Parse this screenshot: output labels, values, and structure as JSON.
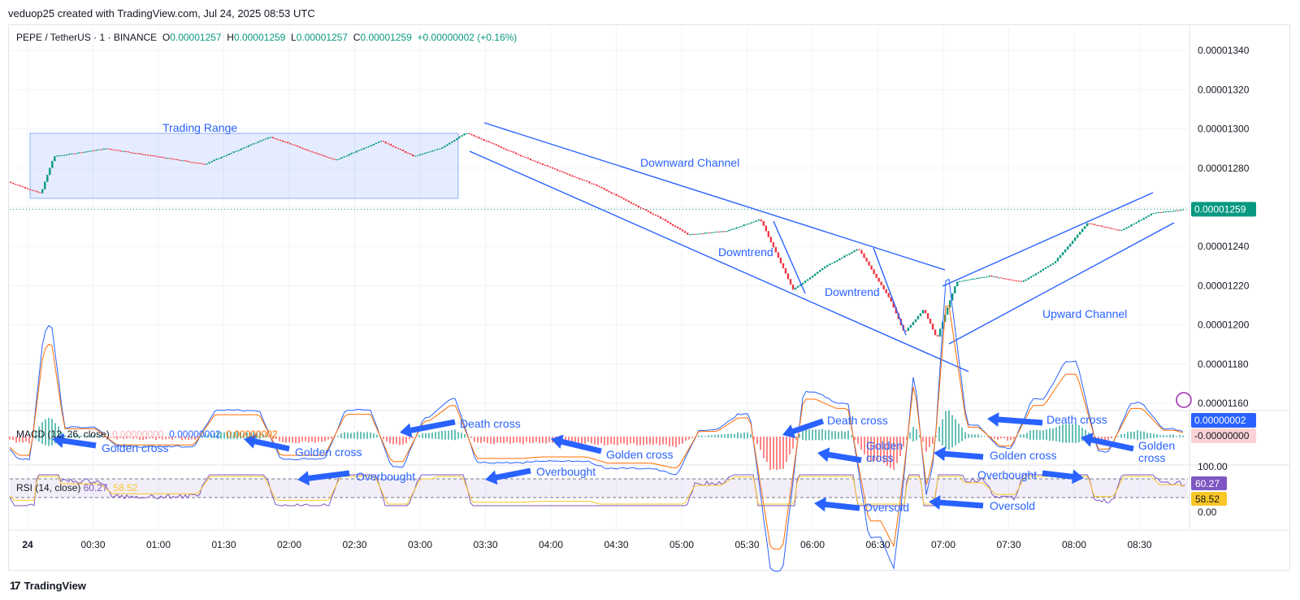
{
  "header": {
    "text": "veduop25 created with TradingView.com, Jul 24, 2025 08:53 UTC"
  },
  "legend": {
    "symbol": "PEPE / TetherUS · 1 · BINANCE",
    "o_label": "O",
    "o": "0.00001257",
    "h_label": "H",
    "h": "0.00001259",
    "l_label": "L",
    "l": "0.00001257",
    "c_label": "C",
    "c": "0.00001259",
    "change": "+0.00000002 (+0.16%)"
  },
  "macd_legend": {
    "name": "MACD (12, 26, close)",
    "hist": "0.00000000",
    "macd": "0.00000002",
    "signal": "0.00000002"
  },
  "rsi_legend": {
    "name": "RSI (14, close)",
    "rsi": "60.27",
    "ma": "58.52"
  },
  "price_axis": {
    "ticks": [
      "0.00001340",
      "0.00001320",
      "0.00001300",
      "0.00001280",
      "0.00001260",
      "0.00001240",
      "0.00001220",
      "0.00001200",
      "0.00001180",
      "0.00001160"
    ],
    "last_price": "0.00001259",
    "last_color": "#089981"
  },
  "macd_axis": {
    "macd_badge": "0.00000002",
    "hist_badge": "-0.00000000",
    "macd_color": "#2962ff",
    "hist_color": "#f7525f"
  },
  "rsi_axis": {
    "top": "100.00",
    "bottom": "0.00",
    "rsi_badge": "60.27",
    "ma_badge": "58.52",
    "rsi_color": "#7e57c2",
    "ma_color": "#f9c626"
  },
  "time_axis": {
    "labels": [
      "24",
      "00:30",
      "01:00",
      "01:30",
      "02:00",
      "02:30",
      "03:00",
      "03:30",
      "04:00",
      "04:30",
      "05:00",
      "05:30",
      "06:00",
      "06:30",
      "07:00",
      "07:30",
      "08:00",
      "08:30"
    ]
  },
  "annotations": {
    "trading_range": "Trading Range",
    "downward_channel": "Downward Channel",
    "downtrend1": "Downtrend",
    "downtrend2": "Downtrend",
    "upward_channel": "Upward Channel",
    "golden_cross": "Golden cross",
    "death_cross": "Death cross",
    "golden": "Golden",
    "cross": "cross",
    "overbought": "Overbought",
    "oversold": "Oversold"
  },
  "branding": {
    "logo": "TradingView"
  },
  "colors": {
    "up": "#089981",
    "down": "#f23645",
    "annotation": "#2962ff"
  },
  "chart_data": {
    "type": "candlestick",
    "title": "PEPE / TetherUS · 1 · BINANCE",
    "x_time": [
      "24",
      "00:30",
      "01:00",
      "01:30",
      "02:00",
      "02:30",
      "03:00",
      "03:30",
      "04:00",
      "04:30",
      "05:00",
      "05:30",
      "06:00",
      "06:30",
      "07:00",
      "07:30",
      "08:00",
      "08:30"
    ],
    "ylim": [
      1.15e-05,
      1.345e-05
    ],
    "price_path": [
      {
        "t": 0,
        "p": 1.273e-05
      },
      {
        "t": 0.25,
        "p": 1.267e-05
      },
      {
        "t": 0.35,
        "p": 1.286e-05
      },
      {
        "t": 0.75,
        "p": 1.29e-05
      },
      {
        "t": 1.5,
        "p": 1.282e-05
      },
      {
        "t": 2.0,
        "p": 1.296e-05
      },
      {
        "t": 2.5,
        "p": 1.284e-05
      },
      {
        "t": 2.85,
        "p": 1.294e-05
      },
      {
        "t": 3.1,
        "p": 1.286e-05
      },
      {
        "t": 3.3,
        "p": 1.29e-05
      },
      {
        "t": 3.5,
        "p": 1.298e-05
      },
      {
        "t": 4.0,
        "p": 1.284e-05
      },
      {
        "t": 4.5,
        "p": 1.271e-05
      },
      {
        "t": 5.0,
        "p": 1.254e-05
      },
      {
        "t": 5.2,
        "p": 1.246e-05
      },
      {
        "t": 5.5,
        "p": 1.248e-05
      },
      {
        "t": 5.75,
        "p": 1.254e-05
      },
      {
        "t": 6.0,
        "p": 1.218e-05
      },
      {
        "t": 6.25,
        "p": 1.23e-05
      },
      {
        "t": 6.5,
        "p": 1.239e-05
      },
      {
        "t": 6.75,
        "p": 1.212e-05
      },
      {
        "t": 6.85,
        "p": 1.196e-05
      },
      {
        "t": 7.0,
        "p": 1.208e-05
      },
      {
        "t": 7.1,
        "p": 1.193e-05
      },
      {
        "t": 7.25,
        "p": 1.222e-05
      },
      {
        "t": 7.5,
        "p": 1.225e-05
      },
      {
        "t": 7.75,
        "p": 1.222e-05
      },
      {
        "t": 8.0,
        "p": 1.232e-05
      },
      {
        "t": 8.25,
        "p": 1.252e-05
      },
      {
        "t": 8.5,
        "p": 1.248e-05
      },
      {
        "t": 8.75,
        "p": 1.257e-05
      },
      {
        "t": 9.0,
        "p": 1.259e-05
      }
    ],
    "macd": {
      "legend": "MACD (12, 26, close)",
      "macd": 2e-08,
      "signal": 2e-08,
      "histogram": 0.0
    },
    "rsi": {
      "legend": "RSI (14, close)",
      "rsi": 60.27,
      "ma": 58.52,
      "range": [
        0,
        100
      ]
    },
    "drawings": [
      "Trading Range",
      "Downward Channel",
      "Downtrend",
      "Downtrend",
      "Upward Channel"
    ],
    "grid": true
  }
}
